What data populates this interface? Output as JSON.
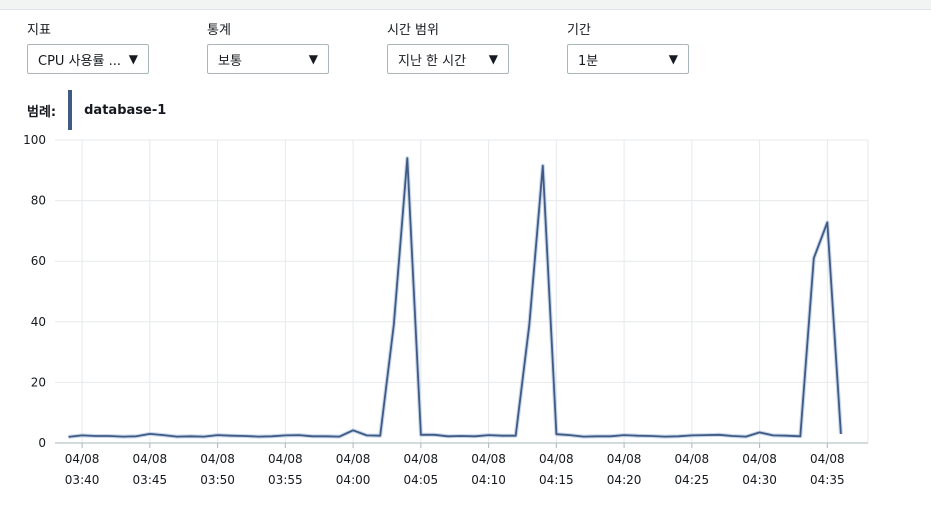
{
  "controls": {
    "metric": {
      "label": "지표",
      "value": "CPU 사용률 ..."
    },
    "statistic": {
      "label": "통계",
      "value": "보통"
    },
    "time_range": {
      "label": "시간 범위",
      "value": "지난 한 시간"
    },
    "period": {
      "label": "기간",
      "value": "1분"
    }
  },
  "legend": {
    "label": "범례:",
    "series": "database-1"
  },
  "colors": {
    "series": "#3f5b84",
    "grid": "#e6e9ec",
    "axis": "#aab7b8"
  },
  "icons": {
    "caret": "caret-down-icon"
  },
  "chart_data": {
    "type": "line",
    "title": "",
    "xlabel": "",
    "ylabel": "",
    "ylim": [
      0,
      100
    ],
    "yticks": [
      0,
      20,
      40,
      60,
      80,
      100
    ],
    "xlim": [
      "03:38",
      "04:38"
    ],
    "xticks": [
      {
        "date": "04/08",
        "time": "03:40"
      },
      {
        "date": "04/08",
        "time": "03:45"
      },
      {
        "date": "04/08",
        "time": "03:50"
      },
      {
        "date": "04/08",
        "time": "03:55"
      },
      {
        "date": "04/08",
        "time": "04:00"
      },
      {
        "date": "04/08",
        "time": "04:05"
      },
      {
        "date": "04/08",
        "time": "04:10"
      },
      {
        "date": "04/08",
        "time": "04:15"
      },
      {
        "date": "04/08",
        "time": "04:20"
      },
      {
        "date": "04/08",
        "time": "04:25"
      },
      {
        "date": "04/08",
        "time": "04:30"
      },
      {
        "date": "04/08",
        "time": "04:35"
      }
    ],
    "grid": true,
    "series": [
      {
        "name": "database-1",
        "x": [
          "03:39",
          "03:40",
          "03:41",
          "03:42",
          "03:43",
          "03:44",
          "03:45",
          "03:46",
          "03:47",
          "03:48",
          "03:49",
          "03:50",
          "03:51",
          "03:52",
          "03:53",
          "03:54",
          "03:55",
          "03:56",
          "03:57",
          "03:58",
          "03:59",
          "04:00",
          "04:01",
          "04:02",
          "04:03",
          "04:04",
          "04:05",
          "04:06",
          "04:07",
          "04:08",
          "04:09",
          "04:10",
          "04:11",
          "04:12",
          "04:13",
          "04:14",
          "04:15",
          "04:16",
          "04:17",
          "04:18",
          "04:19",
          "04:20",
          "04:21",
          "04:22",
          "04:23",
          "04:24",
          "04:25",
          "04:26",
          "04:27",
          "04:28",
          "04:29",
          "04:30",
          "04:31",
          "04:32",
          "04:33",
          "04:34",
          "04:35",
          "04:36"
        ],
        "values": [
          2,
          2.5,
          2.3,
          2.3,
          2.1,
          2.2,
          3,
          2.6,
          2.1,
          2.2,
          2.1,
          2.6,
          2.4,
          2.3,
          2.1,
          2.2,
          2.5,
          2.6,
          2.2,
          2.2,
          2.1,
          4.2,
          2.5,
          2.4,
          39,
          94,
          2.7,
          2.7,
          2.2,
          2.3,
          2.2,
          2.6,
          2.4,
          2.4,
          39,
          91.5,
          2.9,
          2.6,
          2.1,
          2.2,
          2.2,
          2.6,
          2.4,
          2.3,
          2.1,
          2.2,
          2.5,
          2.6,
          2.7,
          2.3,
          2.1,
          3.5,
          2.5,
          2.4,
          2.2,
          61,
          72.8,
          3
        ]
      }
    ]
  }
}
